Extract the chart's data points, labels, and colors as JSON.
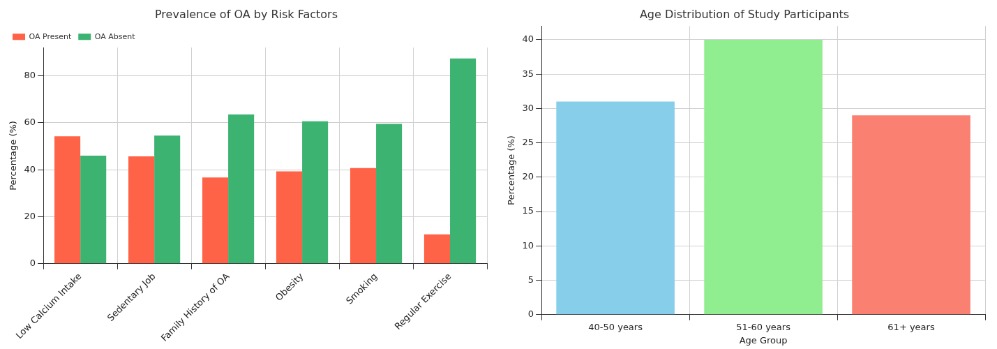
{
  "chart_data": [
    {
      "type": "bar",
      "title": "Prevalence of OA by Risk Factors",
      "ylabel": "Percentage (%)",
      "categories": [
        "Low Calcium Intake",
        "Sedentary Job",
        "Family History of OA",
        "Obesity",
        "Smoking",
        "Regular Exercise"
      ],
      "series": [
        {
          "name": "OA Present",
          "color": "#ff6347",
          "values": [
            54.2,
            45.7,
            36.7,
            39.3,
            40.7,
            12.5
          ]
        },
        {
          "name": "OA Absent",
          "color": "#3cb371",
          "values": [
            46.0,
            54.5,
            63.5,
            60.6,
            59.5,
            87.4
          ]
        }
      ],
      "ylim": [
        0,
        92
      ],
      "yticks": [
        0,
        20,
        40,
        60,
        80
      ],
      "grid": true,
      "legend": "top left"
    },
    {
      "type": "bar",
      "title": "Age Distribution of Study Participants",
      "xlabel": "Age Group",
      "ylabel": "Percentage (%)",
      "categories": [
        "40-50 years",
        "51-60 years",
        "61+ years"
      ],
      "values": [
        31,
        40,
        29
      ],
      "colors": [
        "#87ceeb",
        "#90ee90",
        "#fa8072"
      ],
      "ylim": [
        0,
        42
      ],
      "yticks": [
        0,
        5,
        10,
        15,
        20,
        25,
        30,
        35,
        40
      ],
      "grid": true
    }
  ]
}
